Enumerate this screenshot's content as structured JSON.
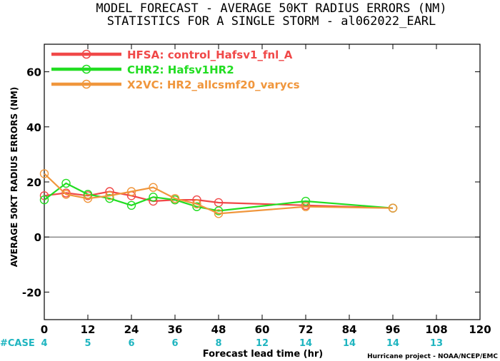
{
  "title_line1": "MODEL FORECAST - AVERAGE 50KT RADIUS ERRORS (NM)",
  "title_line2": "STATISTICS FOR A SINGLE STORM - al062022_EARL",
  "credit": "Hurricane project - NOAA/NCEP/EMC",
  "case_label": "#CASE",
  "colors": {
    "case": "#1fb5c0",
    "zero_line": "#555555"
  },
  "chart_data": {
    "type": "line",
    "xlabel": "Forecast lead time (hr)",
    "ylabel": "AVERAGE 50KT RADIUS ERRORS (NM)",
    "xlim": [
      0,
      120
    ],
    "ylim": [
      -30,
      70
    ],
    "xticks": [
      0,
      12,
      24,
      36,
      48,
      60,
      72,
      84,
      96,
      108,
      120
    ],
    "yticks": [
      -20,
      0,
      20,
      40,
      60
    ],
    "cases": [
      {
        "x": 0,
        "n": "4"
      },
      {
        "x": 12,
        "n": "5"
      },
      {
        "x": 24,
        "n": "6"
      },
      {
        "x": 36,
        "n": "6"
      },
      {
        "x": 48,
        "n": "8"
      },
      {
        "x": 60,
        "n": "12"
      },
      {
        "x": 72,
        "n": "14"
      },
      {
        "x": 84,
        "n": "14"
      },
      {
        "x": 96,
        "n": "14"
      },
      {
        "x": 108,
        "n": "13"
      }
    ],
    "legend": "top-left",
    "series": [
      {
        "name": "HFSA: control_Hafsv1_fnl_A",
        "color": "#f04848",
        "points": [
          [
            0,
            15
          ],
          [
            6,
            16
          ],
          [
            12,
            15
          ],
          [
            18,
            16.5
          ],
          [
            24,
            15
          ],
          [
            30,
            13
          ],
          [
            36,
            13.5
          ],
          [
            42,
            13.5
          ],
          [
            48,
            12.5
          ],
          [
            72,
            11.5
          ],
          [
            96,
            10.5
          ]
        ]
      },
      {
        "name": "CHR2: Hafsv1HR2",
        "color": "#22dd22",
        "points": [
          [
            0,
            13.5
          ],
          [
            6,
            19.5
          ],
          [
            12,
            15.5
          ],
          [
            18,
            14
          ],
          [
            24,
            11.5
          ],
          [
            30,
            14.5
          ],
          [
            36,
            13.5
          ],
          [
            42,
            11
          ],
          [
            48,
            9.5
          ],
          [
            72,
            13
          ],
          [
            96,
            10.5
          ]
        ]
      },
      {
        "name": "X2VC: HR2_allcsmf20_varycs",
        "color": "#f0963c",
        "points": [
          [
            0,
            23
          ],
          [
            6,
            15.5
          ],
          [
            12,
            14
          ],
          [
            18,
            15
          ],
          [
            24,
            16.5
          ],
          [
            30,
            18
          ],
          [
            36,
            14
          ],
          [
            42,
            12
          ],
          [
            48,
            8.5
          ],
          [
            72,
            11
          ],
          [
            96,
            10.5
          ]
        ]
      }
    ]
  }
}
